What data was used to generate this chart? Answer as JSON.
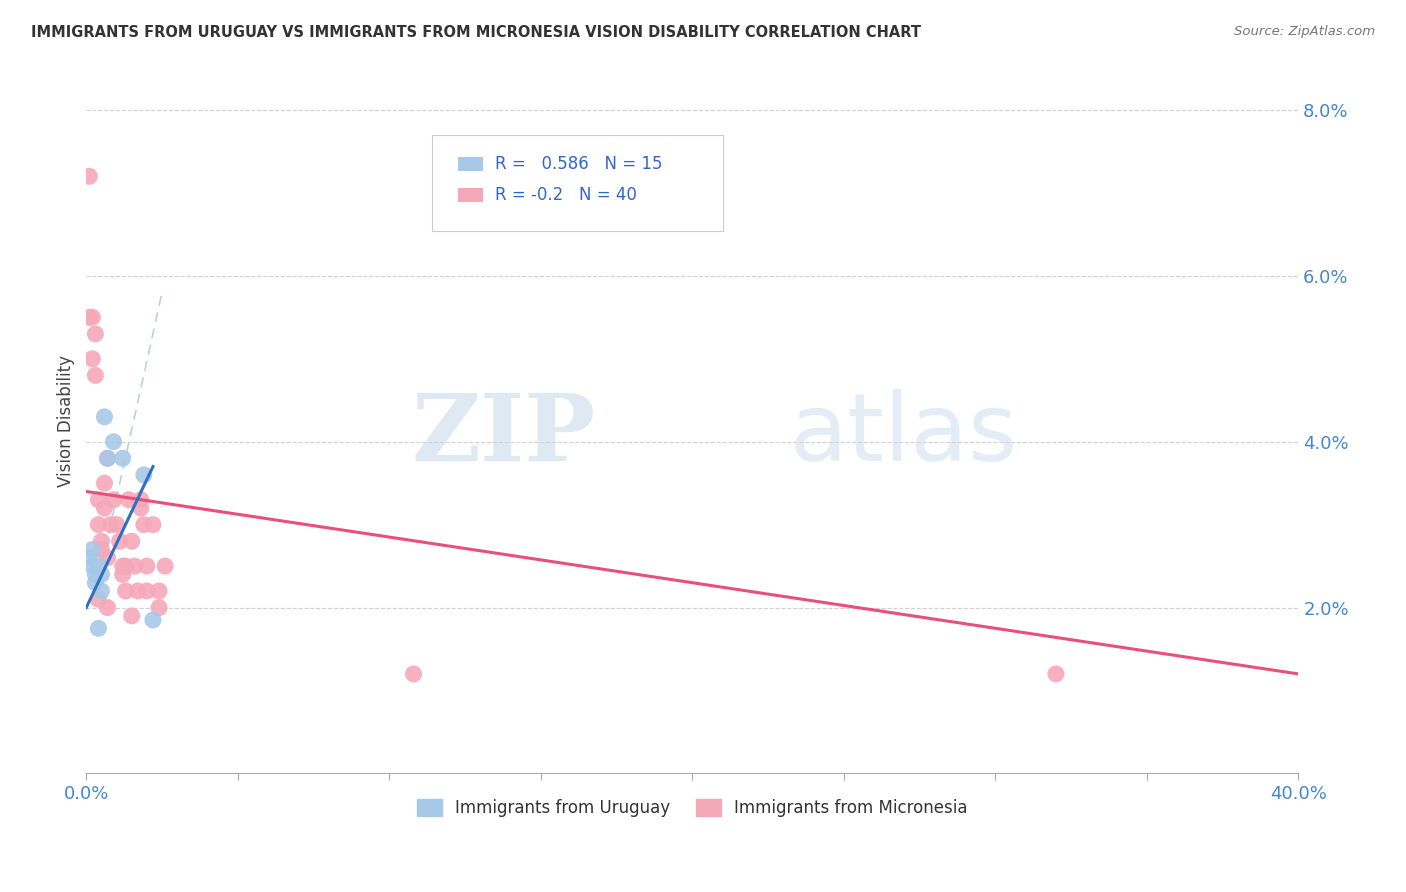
{
  "title": "IMMIGRANTS FROM URUGUAY VS IMMIGRANTS FROM MICRONESIA VISION DISABILITY CORRELATION CHART",
  "source": "Source: ZipAtlas.com",
  "ylabel": "Vision Disability",
  "xlim": [
    0.0,
    0.4
  ],
  "ylim": [
    0.0,
    0.085
  ],
  "yticks": [
    0.02,
    0.04,
    0.06,
    0.08
  ],
  "ytick_labels": [
    "2.0%",
    "4.0%",
    "6.0%",
    "8.0%"
  ],
  "xticks": [
    0.0,
    0.05,
    0.1,
    0.15,
    0.2,
    0.25,
    0.3,
    0.35,
    0.4
  ],
  "legend_blue_label": "Immigrants from Uruguay",
  "legend_pink_label": "Immigrants from Micronesia",
  "R_blue": 0.586,
  "N_blue": 15,
  "R_pink": -0.2,
  "N_pink": 40,
  "blue_color": "#a8c8e8",
  "pink_color": "#f5a8b8",
  "blue_line_color": "#3070c0",
  "pink_line_color": "#e8507a",
  "dash_line_color": "#b0c8e0",
  "watermark_zip": "ZIP",
  "watermark_atlas": "atlas",
  "uruguay_x": [
    0.001,
    0.002,
    0.002,
    0.003,
    0.003,
    0.004,
    0.004,
    0.005,
    0.005,
    0.006,
    0.007,
    0.009,
    0.012,
    0.019,
    0.022
  ],
  "uruguay_y": [
    0.026,
    0.025,
    0.027,
    0.024,
    0.023,
    0.025,
    0.0175,
    0.024,
    0.022,
    0.043,
    0.038,
    0.04,
    0.038,
    0.036,
    0.0185
  ],
  "micronesia_x": [
    0.001,
    0.001,
    0.002,
    0.002,
    0.003,
    0.003,
    0.004,
    0.004,
    0.005,
    0.005,
    0.006,
    0.006,
    0.007,
    0.007,
    0.008,
    0.009,
    0.01,
    0.011,
    0.012,
    0.013,
    0.014,
    0.015,
    0.016,
    0.017,
    0.018,
    0.019,
    0.02,
    0.022,
    0.024,
    0.026,
    0.012,
    0.013,
    0.018,
    0.02,
    0.024,
    0.108,
    0.32,
    0.004,
    0.007,
    0.015
  ],
  "micronesia_y": [
    0.072,
    0.055,
    0.055,
    0.05,
    0.053,
    0.048,
    0.03,
    0.033,
    0.028,
    0.027,
    0.032,
    0.035,
    0.026,
    0.038,
    0.03,
    0.033,
    0.03,
    0.028,
    0.024,
    0.025,
    0.033,
    0.028,
    0.025,
    0.022,
    0.033,
    0.03,
    0.022,
    0.03,
    0.022,
    0.025,
    0.025,
    0.022,
    0.032,
    0.025,
    0.02,
    0.012,
    0.012,
    0.021,
    0.02,
    0.019
  ],
  "pink_line_x0": 0.0,
  "pink_line_y0": 0.034,
  "pink_line_x1": 0.4,
  "pink_line_y1": 0.012,
  "blue_line_x0": 0.0,
  "blue_line_y0": 0.02,
  "blue_line_x1": 0.022,
  "blue_line_y1": 0.037,
  "dash_line_x0": 0.005,
  "dash_line_y0": 0.025,
  "dash_line_x1": 0.025,
  "dash_line_y1": 0.058
}
